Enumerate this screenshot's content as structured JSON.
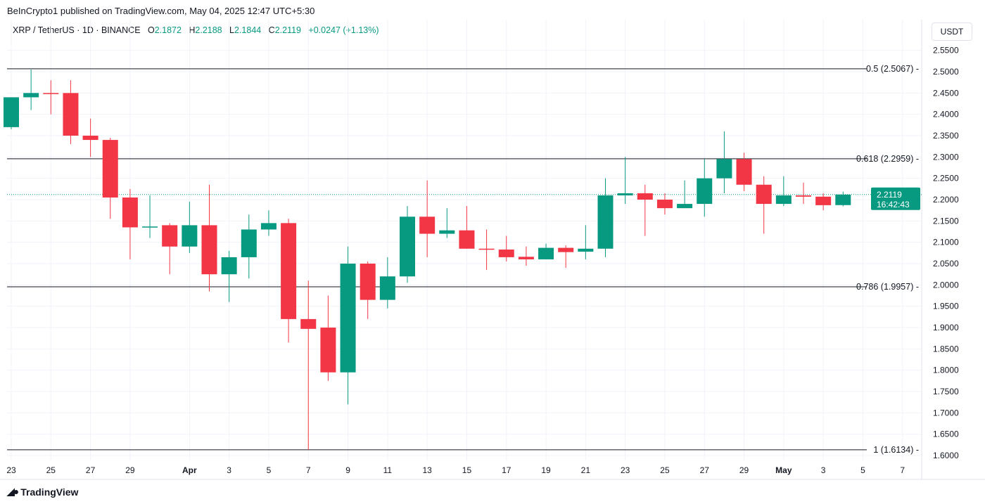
{
  "header": {
    "published": "BeInCrypto1 published on TradingView.com, May 04, 2025 12:47 UTC+5:30",
    "symbol": "XRP / TetherUS · 1D · BINANCE",
    "o_label": "O",
    "o": "2.1872",
    "h_label": "H",
    "h": "2.2188",
    "l_label": "L",
    "l": "2.1844",
    "c_label": "C",
    "c": "2.2119",
    "change": "+0.0247 (+1.13%)"
  },
  "currency": "USDT",
  "current_price": {
    "price": "2.2119",
    "countdown": "16:42:43"
  },
  "footer": {
    "brand": "TradingView"
  },
  "colors": {
    "up": "#089981",
    "down": "#F23645",
    "fib": "#131722"
  },
  "chart_data": {
    "type": "candlestick",
    "ylim": [
      1.6,
      2.55
    ],
    "y_ticks": [
      "2.5500",
      "2.5000",
      "2.4500",
      "2.4000",
      "2.3500",
      "2.3000",
      "2.2500",
      "2.2000",
      "2.1500",
      "2.1000",
      "2.0500",
      "2.0000",
      "1.9500",
      "1.9000",
      "1.8500",
      "1.8000",
      "1.7500",
      "1.7000",
      "1.6500",
      "1.6000"
    ],
    "x_ticks": [
      {
        "i": 0,
        "label": "23"
      },
      {
        "i": 2,
        "label": "25"
      },
      {
        "i": 4,
        "label": "27"
      },
      {
        "i": 6,
        "label": "29"
      },
      {
        "i": 9,
        "label": "Apr"
      },
      {
        "i": 11,
        "label": "3"
      },
      {
        "i": 13,
        "label": "5"
      },
      {
        "i": 15,
        "label": "7"
      },
      {
        "i": 17,
        "label": "9"
      },
      {
        "i": 19,
        "label": "11"
      },
      {
        "i": 21,
        "label": "13"
      },
      {
        "i": 23,
        "label": "15"
      },
      {
        "i": 25,
        "label": "17"
      },
      {
        "i": 27,
        "label": "19"
      },
      {
        "i": 29,
        "label": "21"
      },
      {
        "i": 31,
        "label": "23"
      },
      {
        "i": 33,
        "label": "25"
      },
      {
        "i": 35,
        "label": "27"
      },
      {
        "i": 37,
        "label": "29"
      },
      {
        "i": 39,
        "label": "May"
      },
      {
        "i": 41,
        "label": "3"
      },
      {
        "i": 43,
        "label": "5"
      },
      {
        "i": 45,
        "label": "7"
      }
    ],
    "fib_levels": [
      {
        "label": "0.5 (2.5067)",
        "price": 2.5067
      },
      {
        "label": "0.618 (2.2959)",
        "price": 2.2959
      },
      {
        "label": "0.786 (1.9957)",
        "price": 1.9957
      },
      {
        "label": "1 (1.6134)",
        "price": 1.6134
      }
    ],
    "candles": [
      {
        "date": "Mar 23",
        "o": 2.37,
        "h": 2.44,
        "l": 2.365,
        "c": 2.44
      },
      {
        "date": "Mar 24",
        "o": 2.44,
        "h": 2.505,
        "l": 2.41,
        "c": 2.45
      },
      {
        "date": "Mar 25",
        "o": 2.45,
        "h": 2.48,
        "l": 2.4,
        "c": 2.448
      },
      {
        "date": "Mar 26",
        "o": 2.45,
        "h": 2.48,
        "l": 2.33,
        "c": 2.35
      },
      {
        "date": "Mar 27",
        "o": 2.35,
        "h": 2.39,
        "l": 2.3,
        "c": 2.34
      },
      {
        "date": "Mar 28",
        "o": 2.34,
        "h": 2.345,
        "l": 2.155,
        "c": 2.205
      },
      {
        "date": "Mar 29",
        "o": 2.205,
        "h": 2.225,
        "l": 2.06,
        "c": 2.135
      },
      {
        "date": "Mar 30",
        "o": 2.135,
        "h": 2.21,
        "l": 2.11,
        "c": 2.137
      },
      {
        "date": "Mar 31",
        "o": 2.14,
        "h": 2.145,
        "l": 2.025,
        "c": 2.09
      },
      {
        "date": "Apr 1",
        "o": 2.09,
        "h": 2.195,
        "l": 2.075,
        "c": 2.14
      },
      {
        "date": "Apr 2",
        "o": 2.14,
        "h": 2.235,
        "l": 1.985,
        "c": 2.025
      },
      {
        "date": "Apr 3",
        "o": 2.025,
        "h": 2.08,
        "l": 1.96,
        "c": 2.065
      },
      {
        "date": "Apr 4",
        "o": 2.065,
        "h": 2.165,
        "l": 2.015,
        "c": 2.13
      },
      {
        "date": "Apr 5",
        "o": 2.13,
        "h": 2.175,
        "l": 2.115,
        "c": 2.145
      },
      {
        "date": "Apr 6",
        "o": 2.145,
        "h": 2.155,
        "l": 1.865,
        "c": 1.92
      },
      {
        "date": "Apr 7",
        "o": 1.92,
        "h": 2.01,
        "l": 1.613,
        "c": 1.897
      },
      {
        "date": "Apr 8",
        "o": 1.9,
        "h": 1.975,
        "l": 1.775,
        "c": 1.795
      },
      {
        "date": "Apr 9",
        "o": 1.795,
        "h": 2.09,
        "l": 1.72,
        "c": 2.05
      },
      {
        "date": "Apr 10",
        "o": 2.05,
        "h": 2.055,
        "l": 1.92,
        "c": 1.965
      },
      {
        "date": "Apr 11",
        "o": 1.965,
        "h": 2.065,
        "l": 1.945,
        "c": 2.02
      },
      {
        "date": "Apr 12",
        "o": 2.02,
        "h": 2.185,
        "l": 2.005,
        "c": 2.16
      },
      {
        "date": "Apr 13",
        "o": 2.16,
        "h": 2.245,
        "l": 2.065,
        "c": 2.12
      },
      {
        "date": "Apr 14",
        "o": 2.12,
        "h": 2.18,
        "l": 2.11,
        "c": 2.128
      },
      {
        "date": "Apr 15",
        "o": 2.128,
        "h": 2.185,
        "l": 2.085,
        "c": 2.085
      },
      {
        "date": "Apr 16",
        "o": 2.085,
        "h": 2.13,
        "l": 2.035,
        "c": 2.083
      },
      {
        "date": "Apr 17",
        "o": 2.083,
        "h": 2.115,
        "l": 2.055,
        "c": 2.065
      },
      {
        "date": "Apr 18",
        "o": 2.066,
        "h": 2.09,
        "l": 2.045,
        "c": 2.06
      },
      {
        "date": "Apr 19",
        "o": 2.06,
        "h": 2.097,
        "l": 2.06,
        "c": 2.087
      },
      {
        "date": "Apr 20",
        "o": 2.087,
        "h": 2.093,
        "l": 2.04,
        "c": 2.077
      },
      {
        "date": "Apr 21",
        "o": 2.078,
        "h": 2.14,
        "l": 2.06,
        "c": 2.085
      },
      {
        "date": "Apr 22",
        "o": 2.085,
        "h": 2.25,
        "l": 2.065,
        "c": 2.21
      },
      {
        "date": "Apr 23",
        "o": 2.21,
        "h": 2.3,
        "l": 2.19,
        "c": 2.215
      },
      {
        "date": "Apr 24",
        "o": 2.215,
        "h": 2.235,
        "l": 2.115,
        "c": 2.2
      },
      {
        "date": "Apr 25",
        "o": 2.2,
        "h": 2.215,
        "l": 2.165,
        "c": 2.18
      },
      {
        "date": "Apr 26",
        "o": 2.18,
        "h": 2.245,
        "l": 2.18,
        "c": 2.19
      },
      {
        "date": "Apr 27",
        "o": 2.19,
        "h": 2.295,
        "l": 2.16,
        "c": 2.25
      },
      {
        "date": "Apr 28",
        "o": 2.25,
        "h": 2.36,
        "l": 2.215,
        "c": 2.295
      },
      {
        "date": "Apr 29",
        "o": 2.295,
        "h": 2.31,
        "l": 2.22,
        "c": 2.235
      },
      {
        "date": "Apr 30",
        "o": 2.235,
        "h": 2.255,
        "l": 2.12,
        "c": 2.19
      },
      {
        "date": "May 1",
        "o": 2.19,
        "h": 2.255,
        "l": 2.185,
        "c": 2.21
      },
      {
        "date": "May 2",
        "o": 2.21,
        "h": 2.24,
        "l": 2.19,
        "c": 2.207
      },
      {
        "date": "May 3",
        "o": 2.207,
        "h": 2.215,
        "l": 2.175,
        "c": 2.187
      },
      {
        "date": "May 4",
        "o": 2.1872,
        "h": 2.2188,
        "l": 2.1844,
        "c": 2.2119
      }
    ]
  }
}
